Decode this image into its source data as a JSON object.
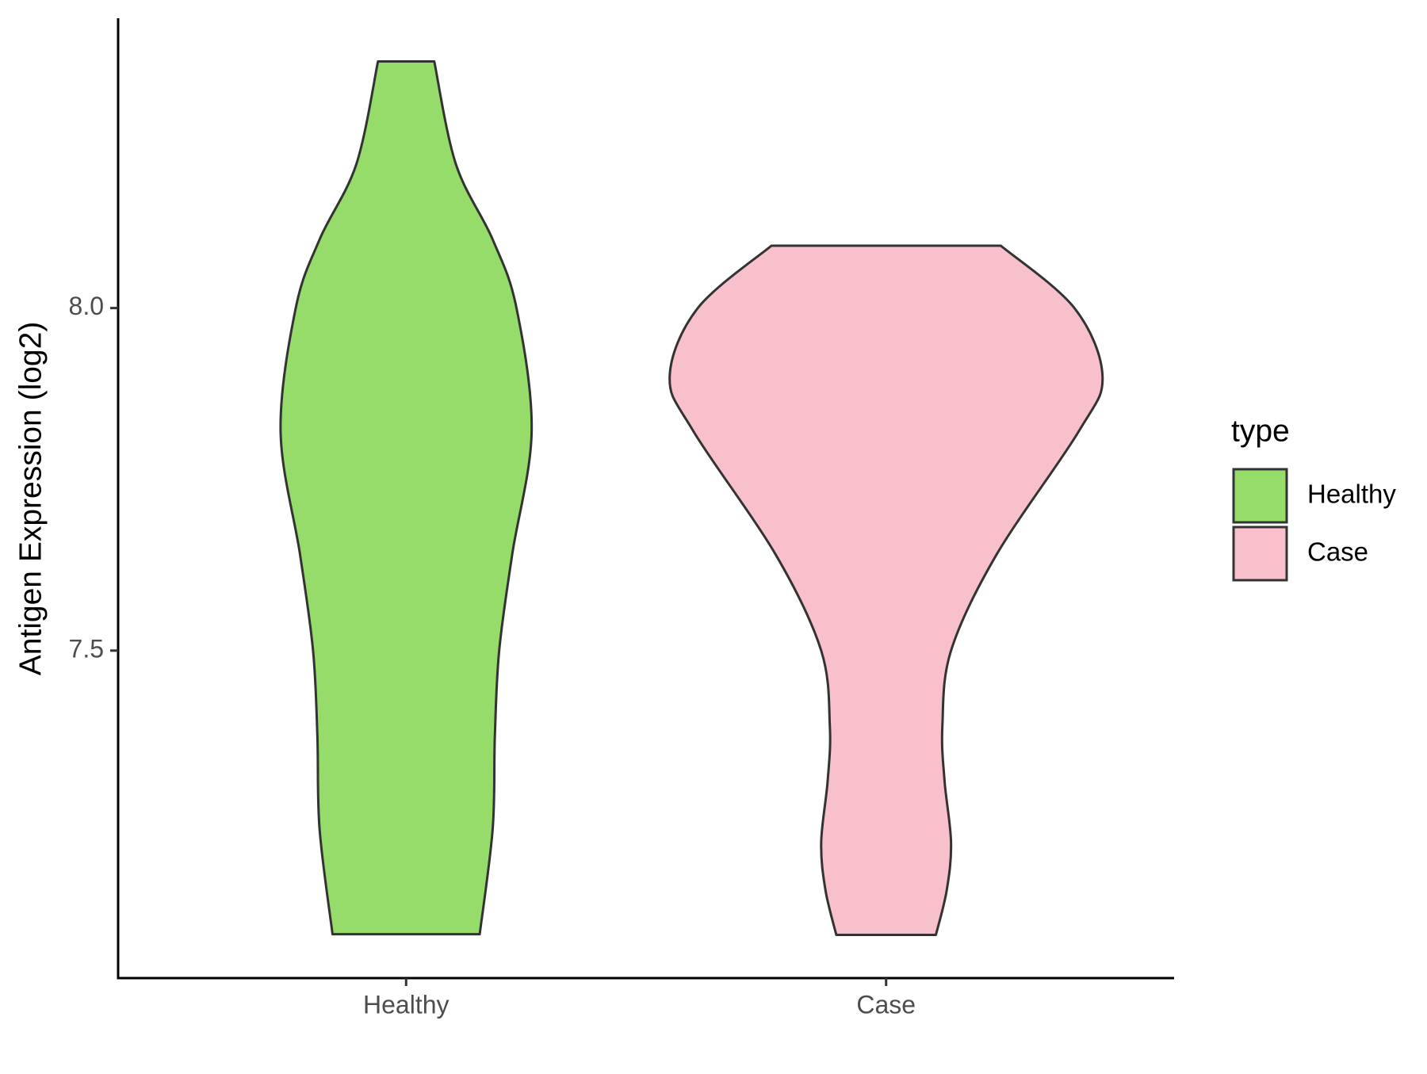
{
  "chart_data": {
    "type": "violin",
    "y_label": "Antigen Expression (log2)",
    "categories": [
      "Healthy",
      "Case"
    ],
    "ylim": [
      7.022,
      8.423
    ],
    "yticks": [
      {
        "value": 7.5,
        "label": "7.5"
      },
      {
        "value": 8.0,
        "label": "8.0"
      }
    ],
    "legend_title": "type",
    "legend_position": "right",
    "series": [
      {
        "name": "Healthy",
        "color": "#95dc6b",
        "y": [
          8.36,
          8.21,
          8.1,
          8.0,
          7.82,
          7.64,
          7.5,
          7.375,
          7.24,
          7.086
        ],
        "width": [
          0.13,
          0.23,
          0.4,
          0.51,
          0.58,
          0.49,
          0.43,
          0.41,
          0.4,
          0.34
        ]
      },
      {
        "name": "Case",
        "color": "#f7c0cb",
        "y": [
          8.091,
          8.0,
          7.9,
          7.82,
          7.64,
          7.5,
          7.39,
          7.31,
          7.22,
          7.15,
          7.085
        ],
        "width": [
          0.53,
          0.87,
          1.0,
          0.89,
          0.51,
          0.3,
          0.26,
          0.27,
          0.3,
          0.28,
          0.23
        ]
      }
    ]
  }
}
